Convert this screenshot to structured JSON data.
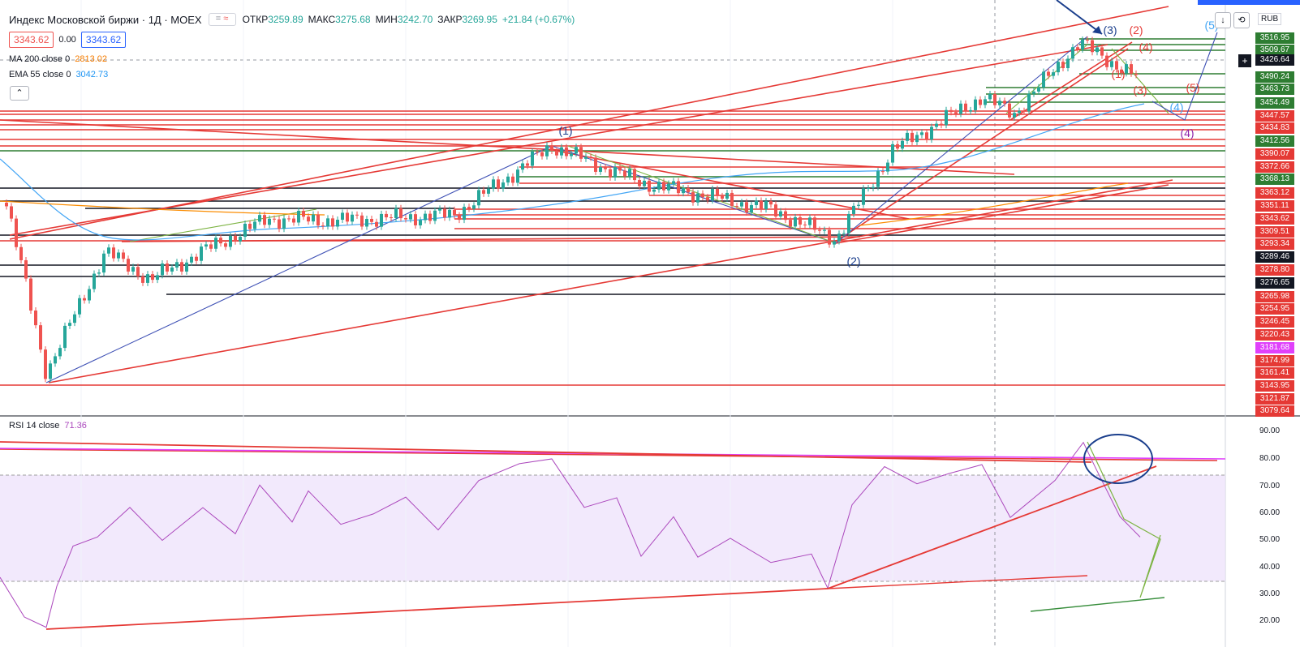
{
  "header": {
    "title": "Индекс Московской биржи · 1Д · MOEX",
    "ohlc": [
      {
        "label": "ОТКР",
        "value": "3259.89"
      },
      {
        "label": "МАКС",
        "value": "3275.68"
      },
      {
        "label": "МИН",
        "value": "3242.70"
      },
      {
        "label": "ЗАКР",
        "value": "3269.95"
      }
    ],
    "change": "+21.84 (+0.67%)",
    "bid": "3343.62",
    "spread": "0.00",
    "ask": "3343.62",
    "currency": "RUB",
    "up_color": "#26a69a",
    "down_color": "#ef5350"
  },
  "indicators": [
    {
      "label": "MA 200 close 0",
      "value": "2813.02",
      "color": "#f57c00"
    },
    {
      "label": "EMA 55 close 0",
      "value": "3042.73",
      "color": "#2196f3"
    }
  ],
  "rsi": {
    "label": "RSI 14 close",
    "value": "71.36",
    "color": "#ab47bc"
  },
  "price_scale": {
    "tags": [
      {
        "v": "3516.95",
        "bg": "#2e7d32"
      },
      {
        "v": "3509.67",
        "bg": "#2e7d32"
      },
      {
        "v": "3426.64",
        "bg": "#131722"
      },
      {
        "v": "3490.24",
        "bg": "#2e7d32"
      },
      {
        "v": "3463.73",
        "bg": "#2e7d32"
      },
      {
        "v": "3454.49",
        "bg": "#2e7d32"
      },
      {
        "v": "3447.57",
        "bg": "#e53935"
      },
      {
        "v": "3434.83",
        "bg": "#e53935"
      },
      {
        "v": "3412.56",
        "bg": "#2e7d32"
      },
      {
        "v": "3390.07",
        "bg": "#e53935"
      },
      {
        "v": "3372.66",
        "bg": "#e53935"
      },
      {
        "v": "3368.13",
        "bg": "#2e7d32"
      },
      {
        "v": "3363.12",
        "bg": "#e53935"
      },
      {
        "v": "3351.11",
        "bg": "#e53935"
      },
      {
        "v": "3343.62",
        "bg": "#e53935"
      },
      {
        "v": "3309.51",
        "bg": "#e53935"
      },
      {
        "v": "3293.34",
        "bg": "#e53935"
      },
      {
        "v": "3289.46",
        "bg": "#131722"
      },
      {
        "v": "3278.80",
        "bg": "#e53935"
      },
      {
        "v": "3276.65",
        "bg": "#131722"
      },
      {
        "v": "3265.98",
        "bg": "#e53935"
      },
      {
        "v": "3254.95",
        "bg": "#e53935"
      },
      {
        "v": "3246.45",
        "bg": "#e53935"
      },
      {
        "v": "3220.43",
        "bg": "#e53935"
      },
      {
        "v": "3181.68",
        "bg": "#e040fb"
      },
      {
        "v": "3174.99",
        "bg": "#e53935"
      },
      {
        "v": "3161.41",
        "bg": "#e53935"
      },
      {
        "v": "3143.95",
        "bg": "#e53935"
      },
      {
        "v": "3121.87",
        "bg": "#e53935"
      },
      {
        "v": "3079.64",
        "bg": "#e53935"
      }
    ],
    "rsi_ticks": [
      "90.00",
      "80.00",
      "70.00",
      "60.00",
      "50.00",
      "40.00",
      "30.00",
      "20.00"
    ]
  },
  "wave_labels": [
    "(1)",
    "(2)",
    "(3)",
    "(2)",
    "(4)",
    "(1)",
    "(3)",
    "(5)",
    "(4)",
    "(5)",
    "(4)"
  ]
}
